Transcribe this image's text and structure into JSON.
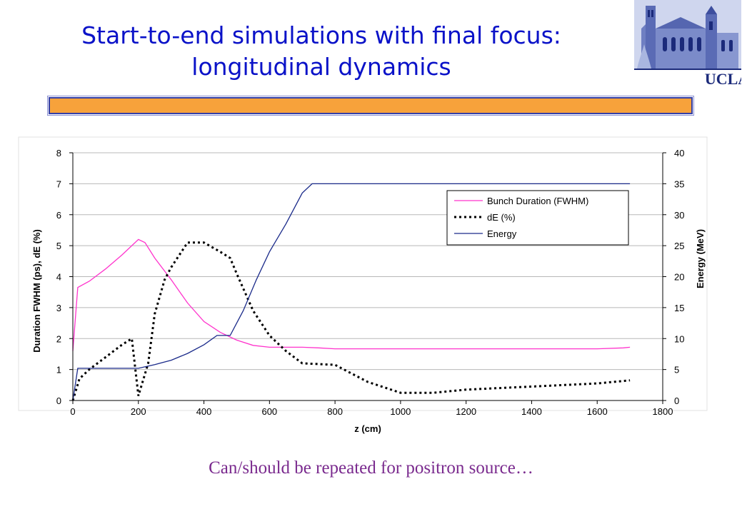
{
  "slide": {
    "title_line1": "Start-to-end simulations with final focus:",
    "title_line2": "longitudinal dynamics",
    "caption": "Can/should be repeated for positron source…",
    "logo_text": "UCLA",
    "title_color": "#0a12c8",
    "bar_color": "#f7a23b"
  },
  "chart_data": {
    "type": "line",
    "xlabel": "z (cm)",
    "ylabel_left": "Duration FWHM (ps), dE (%)",
    "ylabel_right": "Energy (MeV)",
    "xlim": [
      0,
      1800
    ],
    "ylim_left": [
      0,
      8
    ],
    "ylim_right": [
      0,
      40
    ],
    "x_ticks": [
      0,
      200,
      400,
      600,
      800,
      1000,
      1200,
      1400,
      1600,
      1800
    ],
    "y_left_ticks": [
      0,
      1,
      2,
      3,
      4,
      5,
      6,
      7,
      8
    ],
    "y_right_ticks": [
      0,
      5,
      10,
      15,
      20,
      25,
      30,
      35,
      40
    ],
    "grid": "horizontal",
    "legend_position": "top-right",
    "series": [
      {
        "name": "Bunch Duration (FWHM)",
        "axis": "left",
        "color": "#ff33cc",
        "style": "solid",
        "x": [
          0,
          15,
          50,
          100,
          150,
          200,
          220,
          250,
          300,
          350,
          400,
          450,
          500,
          550,
          600,
          700,
          750,
          800,
          900,
          1000,
          1200,
          1400,
          1600,
          1680,
          1700
        ],
        "y": [
          1.6,
          3.65,
          3.85,
          4.25,
          4.7,
          5.2,
          5.1,
          4.6,
          3.9,
          3.15,
          2.55,
          2.2,
          1.95,
          1.78,
          1.72,
          1.72,
          1.7,
          1.67,
          1.67,
          1.67,
          1.67,
          1.67,
          1.67,
          1.7,
          1.72
        ]
      },
      {
        "name": "dE (%)",
        "axis": "left",
        "color": "#000000",
        "style": "dotted",
        "x": [
          0,
          20,
          50,
          100,
          150,
          180,
          200,
          230,
          250,
          280,
          300,
          350,
          400,
          450,
          480,
          500,
          550,
          600,
          650,
          700,
          800,
          900,
          1000,
          1100,
          1200,
          1300,
          1400,
          1500,
          1600,
          1700
        ],
        "y": [
          0,
          0.7,
          1.0,
          1.4,
          1.8,
          2.0,
          0.15,
          1.2,
          2.8,
          3.9,
          4.3,
          5.1,
          5.1,
          4.8,
          4.6,
          4.1,
          2.9,
          2.1,
          1.6,
          1.2,
          1.15,
          0.6,
          0.25,
          0.25,
          0.35,
          0.4,
          0.45,
          0.5,
          0.55,
          0.65
        ]
      },
      {
        "name": "Energy",
        "axis": "right",
        "color": "#1a2a8a",
        "style": "solid",
        "x": [
          0,
          15,
          200,
          250,
          300,
          350,
          400,
          440,
          480,
          520,
          560,
          600,
          650,
          700,
          730,
          800,
          1000,
          1050,
          1200,
          1400,
          1600,
          1700
        ],
        "y": [
          0,
          5.2,
          5.2,
          5.8,
          6.5,
          7.6,
          9.0,
          10.5,
          10.5,
          14.5,
          19.5,
          24.0,
          28.5,
          33.5,
          35,
          35,
          35,
          35,
          35,
          35,
          35,
          35
        ]
      }
    ]
  }
}
